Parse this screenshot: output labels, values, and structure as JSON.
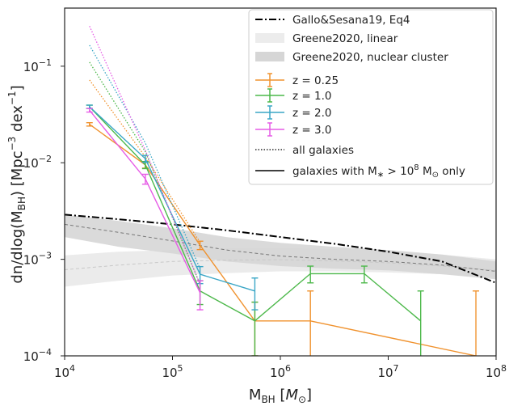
{
  "chart_data": {
    "type": "line",
    "x_scale": "log",
    "y_scale": "log",
    "xlim": [
      10000,
      100000000
    ],
    "ylim": [
      0.0001,
      0.4
    ],
    "xlabel_main": "M",
    "xlabel_sub": "BH",
    "xlabel_unit_open": " [",
    "xlabel_unit_main": "M",
    "xlabel_unit_sub": "⊙",
    "xlabel_unit_close": "]",
    "ylabel_text": "dn/dlog(M",
    "ylabel_sub": "BH",
    "ylabel_mid": ") [Mpc",
    "ylabel_sup1": "−3",
    "ylabel_dex": " dex",
    "ylabel_sup2": "−1",
    "ylabel_end": "]",
    "x_ticks": [
      {
        "value": 10000,
        "base": "10",
        "exp": "4"
      },
      {
        "value": 100000,
        "base": "10",
        "exp": "5"
      },
      {
        "value": 1000000,
        "base": "10",
        "exp": "6"
      },
      {
        "value": 10000000,
        "base": "10",
        "exp": "7"
      },
      {
        "value": 100000000,
        "base": "10",
        "exp": "8"
      }
    ],
    "y_ticks": [
      {
        "value": 0.0001,
        "base": "10",
        "exp": "−4"
      },
      {
        "value": 0.001,
        "base": "10",
        "exp": "−3"
      },
      {
        "value": 0.01,
        "base": "10",
        "exp": "−2"
      },
      {
        "value": 0.1,
        "base": "10",
        "exp": "−1"
      }
    ],
    "references": {
      "gallo": {
        "color": "#000000",
        "x": [
          10000,
          31600,
          100000,
          316000,
          1000000,
          3160000,
          10000000,
          31600000,
          100000000
        ],
        "y": [
          0.0029,
          0.0026,
          0.0023,
          0.002,
          0.0017,
          0.00145,
          0.0012,
          0.00095,
          0.00057
        ]
      },
      "greene_linear": {
        "color": "#e8e8e8",
        "line_color": "#c8c8c8",
        "x": [
          10000,
          31600,
          100000,
          316000,
          1000000,
          3160000,
          10000000,
          31600000,
          100000000
        ],
        "y": [
          0.00078,
          0.00087,
          0.00095,
          0.00098,
          0.00099,
          0.00096,
          0.00092,
          0.00085,
          0.00077
        ],
        "low": [
          0.00052,
          0.0006,
          0.00068,
          0.00072,
          0.00075,
          0.00075,
          0.00073,
          0.0007,
          0.00065
        ],
        "high": [
          0.0011,
          0.0012,
          0.00125,
          0.0013,
          0.0013,
          0.00128,
          0.00122,
          0.00112,
          0.001
        ]
      },
      "greene_nuclear": {
        "color": "#d6d6d6",
        "line_color": "#777777",
        "x": [
          10000,
          31600,
          100000,
          316000,
          1000000,
          3160000,
          10000000,
          31600000,
          100000000
        ],
        "y": [
          0.0023,
          0.0019,
          0.00155,
          0.00125,
          0.00108,
          0.001,
          0.00095,
          0.00087,
          0.00075
        ],
        "low": [
          0.0017,
          0.00135,
          0.00115,
          0.00095,
          0.00085,
          0.0008,
          0.00077,
          0.0007,
          0.00062
        ],
        "high": [
          0.0029,
          0.0025,
          0.0021,
          0.0017,
          0.00148,
          0.00135,
          0.00125,
          0.00112,
          0.00095
        ]
      }
    },
    "series": [
      {
        "name": "z = 0.25",
        "color": "#f0922e",
        "solid": [
          {
            "x": 17000,
            "y": 0.025,
            "err": 0.001
          },
          {
            "x": 56000,
            "y": 0.0095,
            "err": 0.0007
          },
          {
            "x": 180000,
            "y": 0.0014,
            "err": 0.00014
          },
          {
            "x": 580000,
            "y": 0.00023,
            "err": 0.00013
          },
          {
            "x": 1900000,
            "y": 0.00023,
            "lower": 0.0001,
            "upper": 0.00047
          },
          {
            "x": 65000000,
            "y": 0.0001,
            "upper": 0.00047
          }
        ],
        "dotted": [
          {
            "x": 17000,
            "y": 0.072
          },
          {
            "x": 56000,
            "y": 0.0115
          },
          {
            "x": 180000,
            "y": 0.0015
          }
        ]
      },
      {
        "name": "z = 1.0",
        "color": "#4cb84a",
        "solid": [
          {
            "x": 17000,
            "y": 0.038,
            "err": 0.0015
          },
          {
            "x": 56000,
            "y": 0.0095,
            "err": 0.0008
          },
          {
            "x": 180000,
            "y": 0.00047,
            "err": 0.00013
          },
          {
            "x": 580000,
            "y": 0.00023,
            "err": 0.00013
          },
          {
            "x": 1900000,
            "y": 0.00071,
            "err": 0.00014
          },
          {
            "x": 6000000,
            "y": 0.00071,
            "err": 0.00014
          },
          {
            "x": 20000000,
            "y": 0.00023,
            "lower": 0.0001,
            "upper": 0.00047
          }
        ],
        "dotted": [
          {
            "x": 17000,
            "y": 0.11
          },
          {
            "x": 56000,
            "y": 0.013
          },
          {
            "x": 180000,
            "y": 0.00055
          }
        ]
      },
      {
        "name": "z = 2.0",
        "color": "#3aa6c6",
        "solid": [
          {
            "x": 17000,
            "y": 0.038,
            "err": 0.0015
          },
          {
            "x": 56000,
            "y": 0.011,
            "err": 0.0009
          },
          {
            "x": 180000,
            "y": 0.0007,
            "err": 0.00014
          },
          {
            "x": 580000,
            "y": 0.00047,
            "err": 0.00017
          }
        ],
        "dotted": [
          {
            "x": 17000,
            "y": 0.165
          },
          {
            "x": 56000,
            "y": 0.016
          },
          {
            "x": 180000,
            "y": 0.0008
          }
        ]
      },
      {
        "name": "z = 3.0",
        "color": "#e65be6",
        "solid": [
          {
            "x": 17000,
            "y": 0.035,
            "err": 0.0015
          },
          {
            "x": 56000,
            "y": 0.0068,
            "err": 0.0008
          },
          {
            "x": 180000,
            "y": 0.00045,
            "err": 0.00015
          }
        ],
        "dotted": [
          {
            "x": 17000,
            "y": 0.26
          },
          {
            "x": 56000,
            "y": 0.0135
          },
          {
            "x": 180000,
            "y": 0.00055
          }
        ]
      }
    ],
    "legend": {
      "placement": "top-right",
      "gallo": "Gallo&Sesana19, Eq4",
      "greene_linear": "Greene2020, linear",
      "greene_nuclear": "Greene2020, nuclear cluster",
      "z025": "z = 0.25",
      "z10": "z = 1.0",
      "z20": "z = 2.0",
      "z30": "z = 3.0",
      "all": "all galaxies",
      "massive_pre": "galaxies with M",
      "massive_sub": "∗",
      "massive_mid": " > 10",
      "massive_sup": "8",
      "massive_unit": " M",
      "massive_unit_sub": "⊙",
      "massive_post": " only"
    }
  }
}
